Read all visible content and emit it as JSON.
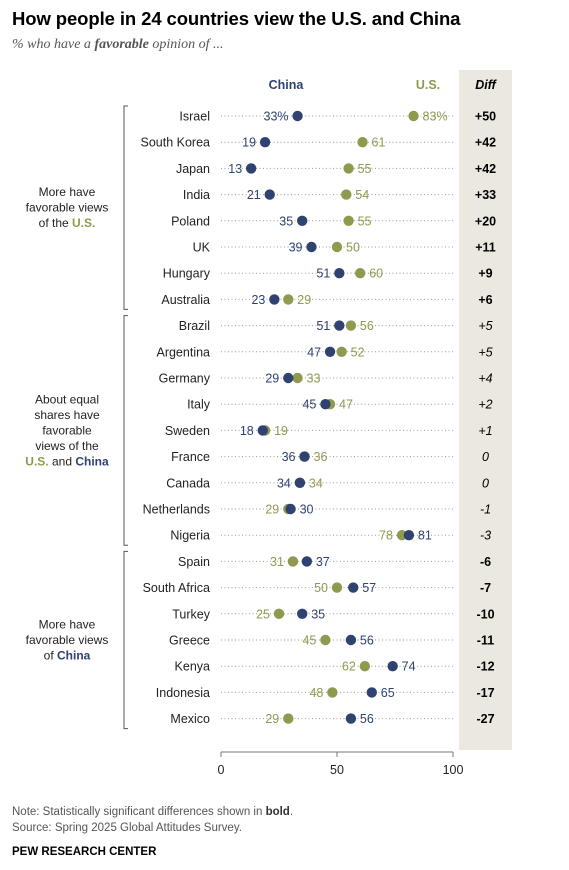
{
  "header": {
    "title": "How people in 24 countries view the U.S. and China",
    "subtitle_prefix": "% who have a ",
    "subtitle_bold": "favorable",
    "subtitle_suffix": " opinion of ..."
  },
  "footer": {
    "note_prefix": "Note: Statistically significant differences shown in ",
    "note_bold": "bold",
    "note_suffix": ".",
    "source": "Source: Spring 2025 Global Attitudes Survey.",
    "org": "PEW RESEARCH CENTER"
  },
  "colors": {
    "china": "#2f4270",
    "us": "#8f9a4e",
    "diff_bg": "#ebe8df",
    "grid_dots": "#9a9a9a",
    "label": "#222222"
  },
  "chart_data": {
    "type": "scatter",
    "legend": {
      "china": "China",
      "us": "U.S.",
      "diff": "Diff"
    },
    "xlim": [
      0,
      100
    ],
    "xticks": [
      0,
      50,
      100
    ],
    "percent_on_first_row": true,
    "groups": [
      {
        "label_lines": [
          [
            "More have",
            null
          ],
          [
            "favorable views",
            null
          ],
          [
            "of the ",
            "U.S."
          ]
        ],
        "rows": [
          0,
          7
        ]
      },
      {
        "label_lines": [
          [
            "About equal",
            null
          ],
          [
            "shares have",
            null
          ],
          [
            "favorable",
            null
          ],
          [
            "views of the",
            null
          ],
          [
            "U.S.",
            " and ",
            "China"
          ]
        ],
        "rows": [
          8,
          16
        ]
      },
      {
        "label_lines": [
          [
            "More have",
            null
          ],
          [
            "favorable views",
            null
          ],
          [
            "of ",
            "China"
          ]
        ],
        "rows": [
          17,
          23
        ]
      }
    ],
    "rows": [
      {
        "country": "Israel",
        "china": 33,
        "us": 83,
        "diff": "+50",
        "significant": true
      },
      {
        "country": "South Korea",
        "china": 19,
        "us": 61,
        "diff": "+42",
        "significant": true
      },
      {
        "country": "Japan",
        "china": 13,
        "us": 55,
        "diff": "+42",
        "significant": true
      },
      {
        "country": "India",
        "china": 21,
        "us": 54,
        "diff": "+33",
        "significant": true
      },
      {
        "country": "Poland",
        "china": 35,
        "us": 55,
        "diff": "+20",
        "significant": true
      },
      {
        "country": "UK",
        "china": 39,
        "us": 50,
        "diff": "+11",
        "significant": true
      },
      {
        "country": "Hungary",
        "china": 51,
        "us": 60,
        "diff": "+9",
        "significant": true
      },
      {
        "country": "Australia",
        "china": 23,
        "us": 29,
        "diff": "+6",
        "significant": true
      },
      {
        "country": "Brazil",
        "china": 51,
        "us": 56,
        "diff": "+5",
        "significant": false
      },
      {
        "country": "Argentina",
        "china": 47,
        "us": 52,
        "diff": "+5",
        "significant": false
      },
      {
        "country": "Germany",
        "china": 29,
        "us": 33,
        "diff": "+4",
        "significant": false
      },
      {
        "country": "Italy",
        "china": 45,
        "us": 47,
        "diff": "+2",
        "significant": false
      },
      {
        "country": "Sweden",
        "china": 18,
        "us": 19,
        "diff": "+1",
        "significant": false
      },
      {
        "country": "France",
        "china": 36,
        "us": 36,
        "diff": "0",
        "significant": false
      },
      {
        "country": "Canada",
        "china": 34,
        "us": 34,
        "diff": "0",
        "significant": false
      },
      {
        "country": "Netherlands",
        "china": 30,
        "us": 29,
        "diff": "-1",
        "significant": false
      },
      {
        "country": "Nigeria",
        "china": 81,
        "us": 78,
        "diff": "-3",
        "significant": false
      },
      {
        "country": "Spain",
        "china": 37,
        "us": 31,
        "diff": "-6",
        "significant": true
      },
      {
        "country": "South Africa",
        "china": 57,
        "us": 50,
        "diff": "-7",
        "significant": true
      },
      {
        "country": "Turkey",
        "china": 35,
        "us": 25,
        "diff": "-10",
        "significant": true
      },
      {
        "country": "Greece",
        "china": 56,
        "us": 45,
        "diff": "-11",
        "significant": true
      },
      {
        "country": "Kenya",
        "china": 74,
        "us": 62,
        "diff": "-12",
        "significant": true
      },
      {
        "country": "Indonesia",
        "china": 65,
        "us": 48,
        "diff": "-17",
        "significant": true
      },
      {
        "country": "Mexico",
        "china": 56,
        "us": 29,
        "diff": "-27",
        "significant": true
      }
    ]
  }
}
